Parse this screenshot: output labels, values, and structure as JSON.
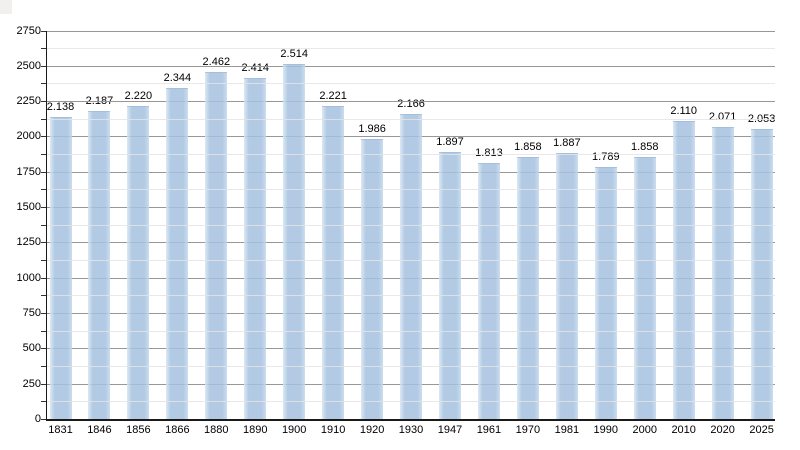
{
  "chart_data": {
    "type": "bar",
    "title": "",
    "xlabel": "",
    "ylabel": "",
    "categories": [
      "1831",
      "1846",
      "1856",
      "1866",
      "1880",
      "1890",
      "1900",
      "1910",
      "1920",
      "1930",
      "1947",
      "1961",
      "1970",
      "1981",
      "1990",
      "2000",
      "2010",
      "2020",
      "2025"
    ],
    "values": [
      2138,
      2187,
      2220,
      2344,
      2462,
      2414,
      2514,
      2221,
      1986,
      2166,
      1897,
      1813,
      1858,
      1887,
      1789,
      1858,
      2110,
      2071,
      2053
    ],
    "value_labels": [
      "2.138",
      "2.187",
      "2.220",
      "2.344",
      "2.462",
      "2.414",
      "2.514",
      "2.221",
      "1.986",
      "2.166",
      "1.897",
      "1.813",
      "1.858",
      "1.887",
      "1.789",
      "1.858",
      "2.110",
      "2.071",
      "2.053"
    ],
    "ylim": [
      0,
      2750
    ],
    "y_major_step": 250,
    "y_minor_step": 125,
    "y_tick_labels": [
      "0",
      "250",
      "500",
      "750",
      "1000",
      "1250",
      "1500",
      "1750",
      "2000",
      "2250",
      "2500",
      "2750"
    ],
    "grid": "on",
    "legend": "none"
  },
  "colors": {
    "background": "#ffffff",
    "bar_fill": "#a4c1de",
    "bar_edge_highlight": "#d8e5f2",
    "bar_top_cap": "#9fbbd8",
    "major_gridline": "#979797",
    "minor_gridline": "#e4e4e4",
    "axis": "#1a1a1a",
    "tick": "#333333",
    "text": "#000000",
    "corner_artifact": "#f2f0ef"
  }
}
